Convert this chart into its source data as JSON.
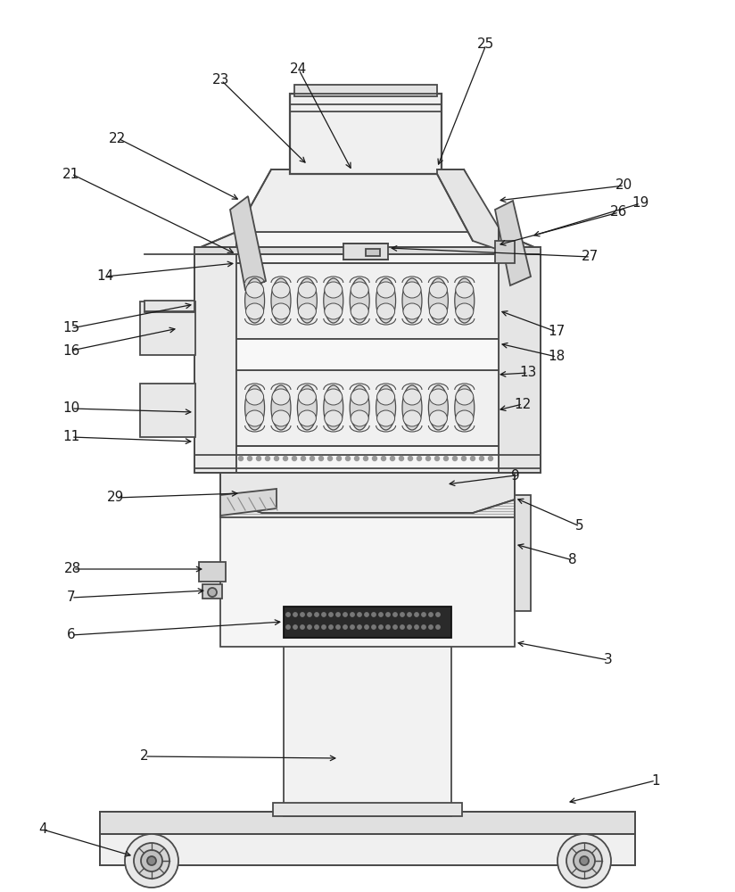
{
  "bg_color": "#ffffff",
  "lc": "#4a4a4a",
  "dc": "#1a1a1a",
  "figsize": [
    8.24,
    10.0
  ],
  "dpi": 100
}
